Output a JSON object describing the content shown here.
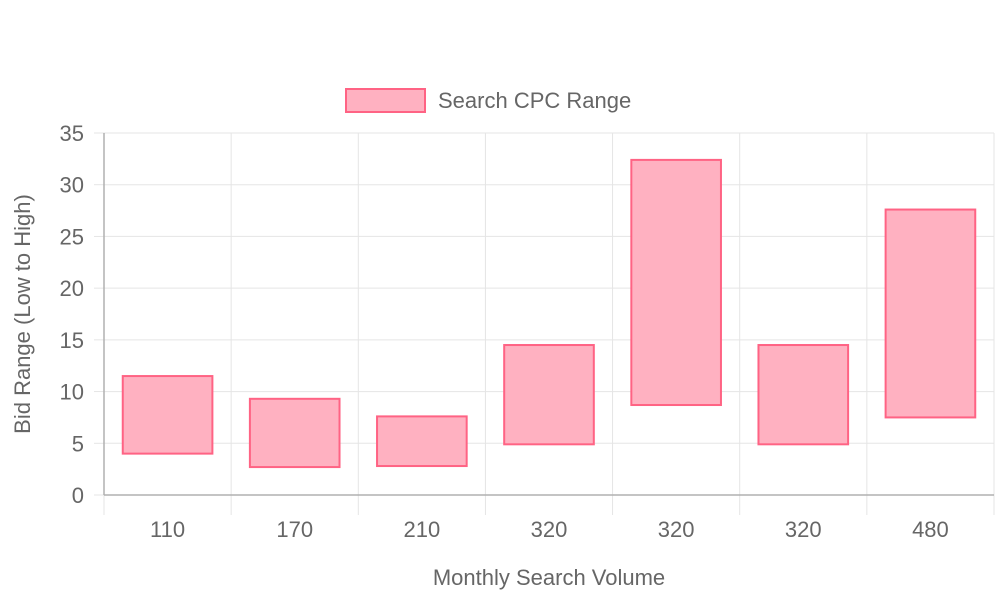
{
  "chart_data": {
    "type": "bar",
    "subtype": "floating-range",
    "categories": [
      "110",
      "170",
      "210",
      "320",
      "320",
      "320",
      "480"
    ],
    "series": [
      {
        "name": "Search CPC Range",
        "ranges": [
          [
            4.0,
            11.5
          ],
          [
            2.7,
            9.3
          ],
          [
            2.8,
            7.6
          ],
          [
            4.9,
            14.5
          ],
          [
            8.7,
            32.4
          ],
          [
            4.9,
            14.5
          ],
          [
            7.5,
            27.6
          ]
        ]
      }
    ],
    "xlabel": "Monthly Search Volume",
    "ylabel": "Bid Range (Low to High)",
    "ylim": [
      0,
      35
    ],
    "yticks": [
      "0",
      "5",
      "10",
      "15",
      "20",
      "25",
      "30",
      "35"
    ],
    "grid": true,
    "legend_position": "top-center",
    "colors": {
      "fill": "#ffb1c1",
      "stroke": "#ff6384",
      "grid": "#e5e5e5",
      "axis": "#b0b0b0",
      "text": "#666666"
    }
  }
}
